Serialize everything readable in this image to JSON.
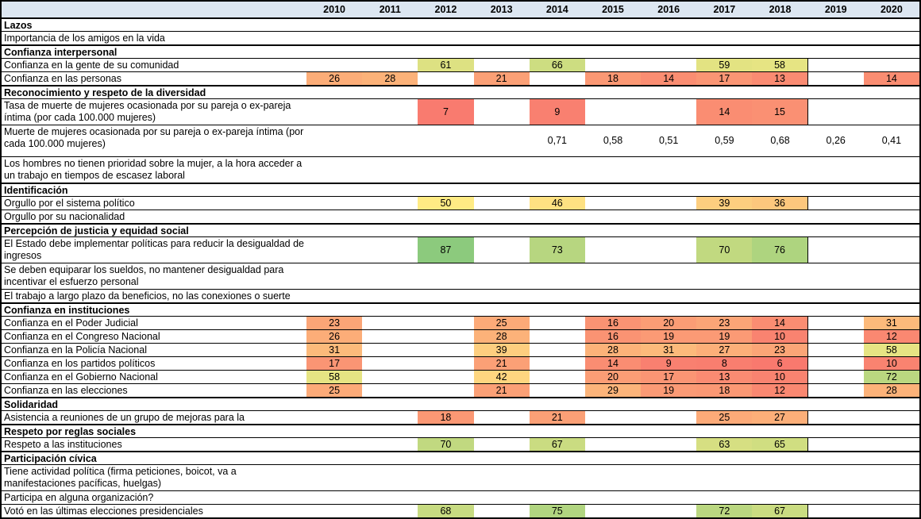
{
  "chart_data": {
    "type": "heatmap",
    "years": [
      "2010",
      "2011",
      "2012",
      "2013",
      "2014",
      "2015",
      "2016",
      "2017",
      "2018",
      "2019",
      "2020"
    ],
    "color_scale": {
      "min": 0,
      "mid": 50,
      "max": 100,
      "min_color": "#F8696B",
      "mid_color": "#FFEB84",
      "max_color": "#63BE7B"
    },
    "header_bg": "#DCE6F1",
    "border_color": "#000000",
    "rows": [
      {
        "type": "section",
        "label": "Lazos"
      },
      {
        "type": "item",
        "label": "Importancia de los amigos en la vida",
        "values": {}
      },
      {
        "type": "section",
        "label": "Confianza interpersonal"
      },
      {
        "type": "item",
        "label": "Confianza en la gente de su comunidad",
        "values": {
          "2012": 61,
          "2014": 66,
          "2017": 59,
          "2018": 58
        }
      },
      {
        "type": "item",
        "label": "Confianza en las personas",
        "values": {
          "2010": 26,
          "2011": 28,
          "2013": 21,
          "2015": 18,
          "2016": 14,
          "2017": 17,
          "2018": 13,
          "2020": 14
        }
      },
      {
        "type": "section",
        "label": "Reconocimiento y respeto de la diversidad"
      },
      {
        "type": "item",
        "lines": 2,
        "label": "Tasa de muerte de mujeres ocasionada por su pareja o ex-pareja íntima (por cada 100.000 mujeres)",
        "values": {
          "2012": 7,
          "2014": 9,
          "2017": 14,
          "2018": 15
        }
      },
      {
        "type": "item",
        "lines": 3,
        "plain": true,
        "label": "Muerte de mujeres ocasionada por su pareja o ex-pareja íntima (por cada 100.000 mujeres)",
        "values": {
          "2014": "0,71",
          "2015": "0,58",
          "2016": "0,51",
          "2017": "0,59",
          "2018": "0,68",
          "2019": "0,26",
          "2020": "0,41"
        }
      },
      {
        "type": "item",
        "lines": 2,
        "label": "Los hombres no tienen prioridad sobre la mujer, a la hora acceder a un trabajo en tiempos de escasez laboral",
        "values": {}
      },
      {
        "type": "section",
        "label": "Identificación"
      },
      {
        "type": "item",
        "label": "Orgullo por el sistema político",
        "values": {
          "2012": 50,
          "2014": 46,
          "2017": 39,
          "2018": 36
        }
      },
      {
        "type": "item",
        "label": "Orgullo por su nacionalidad",
        "values": {}
      },
      {
        "type": "section",
        "label": "Percepción de justicia y equidad social"
      },
      {
        "type": "item",
        "lines": 2,
        "label": "El Estado debe implementar políticas para reducir la desigualdad de ingresos",
        "values": {
          "2012": 87,
          "2014": 73,
          "2017": 70,
          "2018": 76
        }
      },
      {
        "type": "item",
        "lines": 2,
        "label": "Se deben equiparar los sueldos, no mantener desigualdad para incentivar el esfuerzo personal",
        "values": {}
      },
      {
        "type": "item",
        "label": "El trabajo a largo plazo da beneficios, no las conexiones o suerte",
        "values": {}
      },
      {
        "type": "section",
        "label": "Confianza en instituciones"
      },
      {
        "type": "item",
        "label": "Confianza en el Poder Judicial",
        "values": {
          "2010": 23,
          "2013": 25,
          "2015": 16,
          "2016": 20,
          "2017": 23,
          "2018": 14,
          "2020": 31
        }
      },
      {
        "type": "item",
        "label": "Confianza en el Congreso Nacional",
        "values": {
          "2010": 26,
          "2013": 28,
          "2015": 16,
          "2016": 19,
          "2017": 19,
          "2018": 10,
          "2020": 12
        }
      },
      {
        "type": "item",
        "label": "Confianza en la Policía Nacional",
        "values": {
          "2010": 31,
          "2013": 39,
          "2015": 28,
          "2016": 31,
          "2017": 27,
          "2018": 23,
          "2020": 58
        }
      },
      {
        "type": "item",
        "label": "Confianza en los partidos políticos",
        "values": {
          "2010": 17,
          "2013": 21,
          "2015": 14,
          "2016": 9,
          "2017": 8,
          "2018": 6,
          "2020": 10
        }
      },
      {
        "type": "item",
        "label": "Confianza en el Gobierno Nacional",
        "values": {
          "2010": 58,
          "2013": 42,
          "2015": 20,
          "2016": 17,
          "2017": 13,
          "2018": 10,
          "2020": 72
        }
      },
      {
        "type": "item",
        "label": "Confianza en las elecciones",
        "values": {
          "2010": 25,
          "2013": 21,
          "2015": 29,
          "2016": 19,
          "2017": 18,
          "2018": 12,
          "2020": 28
        }
      },
      {
        "type": "section",
        "label": "Solidaridad"
      },
      {
        "type": "item",
        "label": "Asistencia a reuniones de un grupo de mejoras para la",
        "values": {
          "2012": 18,
          "2014": 21,
          "2017": 25,
          "2018": 27
        }
      },
      {
        "type": "section",
        "label": "Respeto por reglas sociales"
      },
      {
        "type": "item",
        "label": "Respeto a las instituciones",
        "values": {
          "2012": 70,
          "2014": 67,
          "2017": 63,
          "2018": 65
        }
      },
      {
        "type": "section",
        "label": "Participación cívica"
      },
      {
        "type": "item",
        "lines": 2,
        "label": "Tiene actividad política (firma peticiones, boicot, va a manifestaciones pacíficas, huelgas)",
        "values": {}
      },
      {
        "type": "item",
        "label": "Participa en alguna organización?",
        "values": {}
      },
      {
        "type": "item",
        "label": "Votó en las últimas elecciones presidenciales",
        "values": {
          "2012": 68,
          "2014": 75,
          "2017": 72,
          "2018": 67
        }
      }
    ]
  }
}
